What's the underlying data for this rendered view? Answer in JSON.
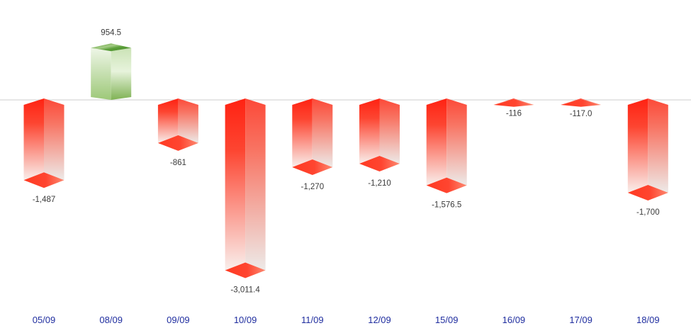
{
  "chart_data": {
    "type": "bar",
    "variant": "3d-box-columns",
    "title": "",
    "xlabel": "",
    "ylabel": "",
    "categories": [
      "05/09",
      "08/09",
      "09/09",
      "10/09",
      "11/09",
      "12/09",
      "15/09",
      "16/09",
      "17/09",
      "18/09"
    ],
    "values": [
      -1487,
      954.5,
      -861,
      -3011.4,
      -1270,
      -1210,
      -1576.5,
      -116,
      -117.0,
      -1700
    ],
    "value_labels": [
      "-1,487",
      "954.5",
      "-861",
      "-3,011.4",
      "-1,270",
      "-1,210",
      "-1,576.5",
      "-116",
      "-117.0",
      "-1,700"
    ],
    "baseline_value": 0,
    "ylim": [
      -3200,
      1100
    ],
    "grid": false,
    "legend": false,
    "axis_labels_position": "bottom",
    "colors": {
      "negative_main": "#ff2212",
      "negative_fade": "#f9efec",
      "negative_side_fade": "#edeae8",
      "negative_cap": "#ff3a22",
      "positive_main": "#7fb254",
      "positive_light": "#eef6e7",
      "positive_top_dark": "#4e9030",
      "axis_line": "#d8d8d8",
      "category_label": "#1f2d9f",
      "value_label": "#3a3a3a",
      "background": "#ffffff"
    }
  }
}
